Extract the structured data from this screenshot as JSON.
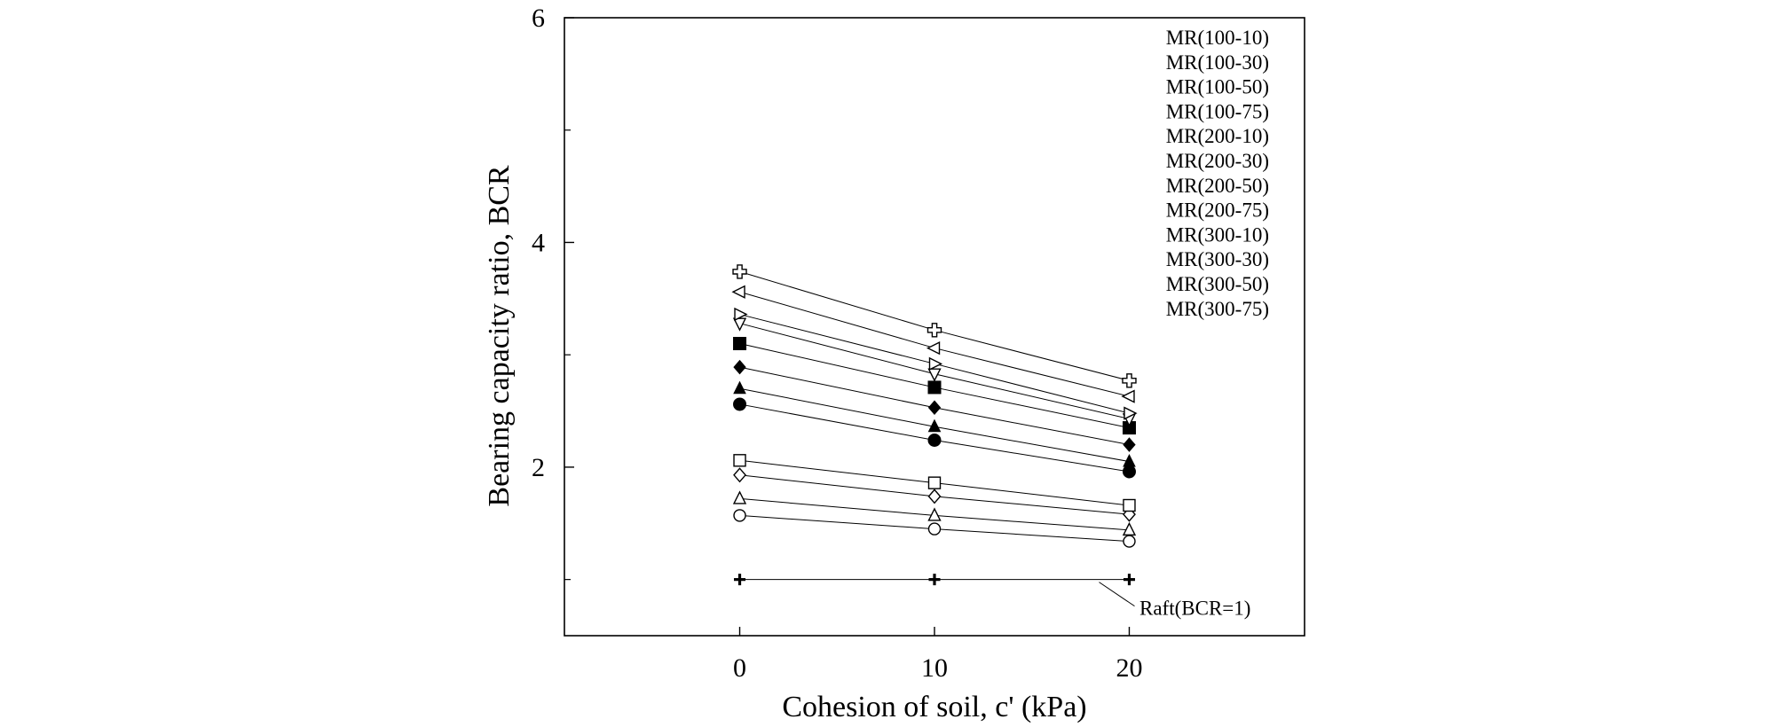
{
  "chart_data": {
    "type": "line",
    "title": "",
    "xlabel": "Cohesion of soil, c' (kPa)",
    "ylabel": "Bearing capacity ratio, BCR",
    "xlim": [
      -9,
      29
    ],
    "ylim": [
      0.5,
      6
    ],
    "x_ticks": [
      0,
      10,
      20
    ],
    "y_ticks": [
      2,
      4,
      6
    ],
    "y_minor_ticks": [
      1,
      3,
      5
    ],
    "grid": false,
    "legend_position": "top-right",
    "x": [
      0,
      10,
      20
    ],
    "series": [
      {
        "name": "MR(100-10)",
        "marker": "open-circle",
        "values": [
          1.57,
          1.45,
          1.34
        ]
      },
      {
        "name": "MR(100-30)",
        "marker": "open-triangle-up",
        "values": [
          1.72,
          1.57,
          1.44
        ]
      },
      {
        "name": "MR(100-50)",
        "marker": "open-diamond",
        "values": [
          1.93,
          1.74,
          1.58
        ]
      },
      {
        "name": "MR(100-75)",
        "marker": "open-square",
        "values": [
          2.06,
          1.86,
          1.66
        ]
      },
      {
        "name": "MR(200-10)",
        "marker": "filled-circle",
        "values": [
          2.56,
          2.24,
          1.96
        ]
      },
      {
        "name": "MR(200-30)",
        "marker": "filled-triangle-up",
        "values": [
          2.7,
          2.36,
          2.05
        ]
      },
      {
        "name": "MR(200-50)",
        "marker": "filled-diamond",
        "values": [
          2.89,
          2.53,
          2.2
        ]
      },
      {
        "name": "MR(200-75)",
        "marker": "filled-square",
        "values": [
          3.1,
          2.71,
          2.35
        ]
      },
      {
        "name": "MR(300-10)",
        "marker": "open-triangle-down",
        "values": [
          3.28,
          2.83,
          2.43
        ]
      },
      {
        "name": "MR(300-30)",
        "marker": "open-triangle-right",
        "values": [
          3.36,
          2.92,
          2.48
        ]
      },
      {
        "name": "MR(300-50)",
        "marker": "open-triangle-left",
        "values": [
          3.56,
          3.06,
          2.63
        ]
      },
      {
        "name": "MR(300-75)",
        "marker": "open-cross",
        "values": [
          3.74,
          3.22,
          2.77
        ]
      },
      {
        "name": "Raft(BCR=1)",
        "marker": "bold-plus",
        "values": [
          1.0,
          1.0,
          1.0
        ]
      }
    ],
    "legend_entries": [
      "MR(100-10)",
      "MR(100-30)",
      "MR(100-50)",
      "MR(100-75)",
      "MR(200-10)",
      "MR(200-30)",
      "MR(200-50)",
      "MR(200-75)",
      "MR(300-10)",
      "MR(300-30)",
      "MR(300-50)",
      "MR(300-75)"
    ],
    "annotations": [
      {
        "text": "Raft(BCR=1)",
        "points_to_series": "Raft(BCR=1)"
      }
    ]
  },
  "colors": {
    "ink": "#000000",
    "background": "#ffffff"
  }
}
